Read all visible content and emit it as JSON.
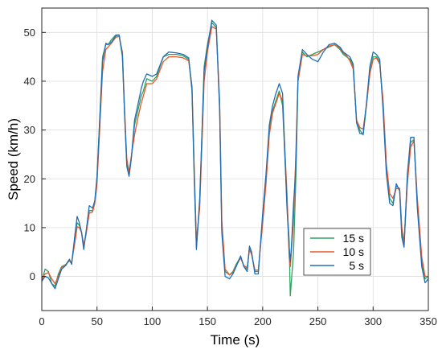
{
  "chart_data": {
    "type": "line",
    "xlabel": "Time (s)",
    "ylabel": "Speed (km/h)",
    "xlim": [
      0,
      350
    ],
    "ylim": [
      -7,
      55
    ],
    "xticks": [
      0,
      50,
      100,
      150,
      200,
      250,
      300,
      350
    ],
    "yticks": [
      0,
      10,
      20,
      30,
      40,
      50
    ],
    "grid": true,
    "legend_position": "bottom-right",
    "series": [
      {
        "name": "15 s",
        "color": "#2ca25f",
        "x": [
          0,
          3,
          6,
          9,
          12,
          15,
          18,
          22,
          25,
          27,
          30,
          32,
          34,
          36,
          38,
          40,
          43,
          46,
          48,
          50,
          55,
          58,
          60,
          63,
          67,
          70,
          73,
          75,
          77,
          79,
          81,
          84,
          87,
          90,
          92,
          95,
          100,
          104,
          110,
          115,
          122,
          128,
          133,
          136,
          138,
          140,
          143,
          147,
          150,
          154,
          158,
          161,
          163,
          166,
          170,
          173,
          176,
          180,
          183,
          186,
          188,
          190,
          193,
          196,
          200,
          203,
          206,
          209,
          212,
          215,
          218,
          222,
          224,
          225,
          226,
          228,
          230,
          232,
          236,
          240,
          245,
          250,
          255,
          260,
          265,
          270,
          273,
          276,
          279,
          282,
          285,
          288,
          291,
          294,
          297,
          300,
          303,
          306,
          309,
          312,
          315,
          318,
          321,
          324,
          326,
          328,
          331,
          334,
          337,
          340,
          344,
          347,
          350
        ],
        "y": [
          -1,
          1.5,
          1,
          -1.5,
          -2,
          0.5,
          2,
          2.5,
          3.5,
          2.5,
          8,
          11,
          10.5,
          9,
          6,
          9,
          13.5,
          13.5,
          15.5,
          20,
          45,
          47.5,
          47.5,
          48.5,
          49.5,
          49.5,
          45,
          33,
          23,
          21,
          24,
          31,
          34,
          37,
          38,
          40.5,
          40,
          41,
          45,
          45.5,
          45.5,
          45.2,
          44.5,
          38,
          20,
          6,
          15,
          43,
          47.5,
          52,
          51,
          35,
          10,
          1,
          0.3,
          1,
          2.5,
          4,
          2,
          1.5,
          6,
          4.5,
          1,
          1,
          12,
          20,
          30,
          34,
          36,
          38,
          35,
          15,
          7.5,
          -4,
          -1,
          5,
          20,
          40,
          46,
          45,
          45.5,
          46,
          46.5,
          47,
          47.5,
          46.5,
          45.5,
          45,
          44.5,
          43,
          32,
          30,
          29,
          35,
          42,
          45,
          45,
          44,
          35,
          22,
          16,
          15,
          18.5,
          18,
          9,
          6.5,
          20,
          27.5,
          28,
          15,
          3,
          -0.5,
          0
        ]
      },
      {
        "name": "10 s",
        "color": "#e8562a",
        "x": [
          0,
          3,
          6,
          9,
          12,
          15,
          18,
          22,
          25,
          27,
          30,
          32,
          34,
          36,
          38,
          40,
          43,
          46,
          48,
          50,
          55,
          58,
          60,
          63,
          67,
          70,
          73,
          75,
          77,
          79,
          81,
          84,
          87,
          90,
          92,
          95,
          100,
          104,
          110,
          115,
          122,
          128,
          133,
          136,
          138,
          140,
          143,
          147,
          150,
          154,
          158,
          161,
          163,
          166,
          170,
          173,
          176,
          180,
          183,
          186,
          188,
          190,
          193,
          196,
          200,
          203,
          206,
          209,
          212,
          215,
          218,
          222,
          224,
          225,
          226,
          228,
          230,
          232,
          236,
          240,
          245,
          250,
          255,
          260,
          265,
          270,
          273,
          276,
          279,
          282,
          285,
          288,
          291,
          294,
          297,
          300,
          303,
          306,
          309,
          312,
          315,
          318,
          321,
          324,
          326,
          328,
          331,
          334,
          337,
          340,
          344,
          347,
          350
        ],
        "y": [
          -0.5,
          0.5,
          0.8,
          -0.5,
          -1.5,
          0,
          1.8,
          2.5,
          3.2,
          2.8,
          7,
          10.2,
          10,
          9,
          6.5,
          8.5,
          13,
          13.2,
          15,
          19,
          42,
          46.5,
          47,
          47.8,
          49,
          49.2,
          46,
          34,
          24,
          21.5,
          24.5,
          29,
          32.5,
          35.5,
          37,
          39.5,
          39.5,
          40.5,
          44,
          45,
          45,
          44.8,
          44.2,
          39,
          22,
          7.5,
          14,
          40,
          46,
          51.2,
          50.7,
          36,
          11.5,
          1.5,
          0.3,
          0.8,
          2.2,
          3.8,
          2.2,
          1.8,
          5.5,
          4.5,
          1.3,
          1.3,
          11,
          19,
          29,
          33.5,
          35.5,
          37.5,
          36,
          17,
          4,
          2,
          5,
          12,
          25,
          40,
          45.5,
          45.2,
          45.2,
          45.5,
          46.5,
          47.2,
          47.5,
          46.8,
          45.8,
          45.2,
          44.2,
          42.5,
          32,
          30.5,
          30.2,
          35,
          41.5,
          44.5,
          44.8,
          43.5,
          36,
          23,
          17,
          16,
          18,
          18,
          10,
          7,
          19,
          26.5,
          27.8,
          16,
          4,
          0,
          0
        ]
      },
      {
        "name": "5 s",
        "color": "#1f6fb5",
        "x": [
          0,
          3,
          6,
          9,
          12,
          15,
          18,
          22,
          25,
          27,
          30,
          32,
          34,
          36,
          38,
          40,
          43,
          46,
          48,
          50,
          55,
          58,
          60,
          63,
          67,
          70,
          73,
          75,
          77,
          79,
          81,
          84,
          87,
          90,
          92,
          95,
          100,
          104,
          110,
          115,
          122,
          128,
          133,
          136,
          138,
          140,
          143,
          147,
          150,
          154,
          158,
          161,
          163,
          166,
          170,
          173,
          176,
          180,
          183,
          186,
          188,
          190,
          193,
          196,
          200,
          203,
          206,
          209,
          212,
          215,
          218,
          222,
          224,
          225,
          226,
          228,
          230,
          232,
          236,
          240,
          245,
          250,
          255,
          260,
          265,
          270,
          273,
          276,
          279,
          282,
          285,
          288,
          291,
          294,
          297,
          300,
          303,
          306,
          309,
          312,
          315,
          318,
          321,
          324,
          326,
          328,
          331,
          334,
          337,
          340,
          344,
          347,
          350
        ],
        "y": [
          -1,
          0,
          -0.3,
          -1.5,
          -2.5,
          -0.5,
          1.5,
          2.3,
          3.5,
          2.5,
          8.5,
          12.3,
          11,
          9,
          5.5,
          9,
          14.5,
          14,
          15.5,
          20.5,
          44,
          47.8,
          47.5,
          48,
          49.3,
          49.5,
          45.5,
          33,
          22.5,
          20.5,
          24,
          32,
          35.2,
          38.5,
          40,
          41.5,
          41,
          41.5,
          45,
          46,
          45.8,
          45.5,
          44.8,
          38.5,
          21,
          5.5,
          16,
          42,
          47,
          52.5,
          51.5,
          34,
          9,
          0,
          -0.5,
          0.5,
          2,
          4.2,
          2,
          1,
          6.2,
          5,
          0.5,
          0.5,
          13,
          21,
          31,
          35,
          37.5,
          39.5,
          37.5,
          14,
          6,
          3,
          6,
          15,
          22,
          41,
          46.5,
          45.5,
          44.5,
          44,
          46,
          47.5,
          47.8,
          47,
          46,
          45.5,
          45,
          43.5,
          31.5,
          29.3,
          29.2,
          35.5,
          43,
          46,
          45.5,
          44.5,
          34,
          21,
          15,
          14.5,
          19,
          17.5,
          8,
          6,
          21,
          28.5,
          28.5,
          14,
          2,
          -1.3,
          -0.5
        ]
      }
    ]
  }
}
